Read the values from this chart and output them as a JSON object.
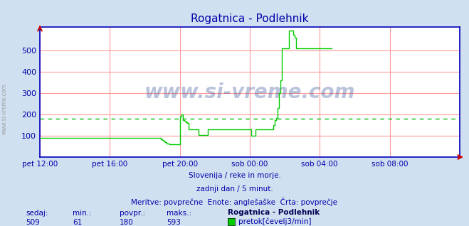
{
  "title": "Rogatnica - Podlehnik",
  "bg_color": "#d0e0f0",
  "plot_bg_color": "#ffffff",
  "line_color": "#00cc00",
  "avg_line_color": "#00bb00",
  "avg_value": 180,
  "grid_color": "#ff9999",
  "text_color": "#0000aa",
  "ylabel_ticks": [
    100,
    200,
    300,
    400,
    500
  ],
  "ylim": [
    0,
    610
  ],
  "subtitle1": "Slovenija / reke in morje.",
  "subtitle2": "zadnji dan / 5 minut.",
  "subtitle3": "Meritve: povprečne  Enote: anglešaške  Črta: povprečje",
  "bottom_labels": [
    "sedaj:",
    "min.:",
    "povpr.:",
    "maks.:"
  ],
  "bottom_values": [
    "509",
    "61",
    "180",
    "593"
  ],
  "station_name": "Rogatnica - Podlehnik",
  "legend_label": "pretok[čevelj3/min]",
  "xtick_labels": [
    "pet 12:00",
    "pet 16:00",
    "pet 20:00",
    "sob 00:00",
    "sob 04:00",
    "sob 08:00"
  ],
  "xtick_positions": [
    0,
    48,
    96,
    144,
    192,
    240
  ],
  "total_points": 288,
  "watermark": "www.si-vreme.com",
  "flow_data": [
    90,
    90,
    90,
    90,
    90,
    90,
    90,
    90,
    90,
    90,
    90,
    90,
    90,
    90,
    90,
    90,
    90,
    90,
    90,
    90,
    90,
    90,
    90,
    90,
    90,
    90,
    90,
    90,
    90,
    90,
    90,
    90,
    90,
    90,
    90,
    90,
    90,
    90,
    90,
    90,
    90,
    90,
    90,
    90,
    90,
    90,
    90,
    90,
    90,
    90,
    90,
    90,
    90,
    90,
    90,
    90,
    90,
    90,
    90,
    90,
    90,
    90,
    90,
    90,
    90,
    90,
    90,
    90,
    90,
    90,
    90,
    90,
    90,
    90,
    90,
    90,
    90,
    90,
    90,
    90,
    90,
    90,
    90,
    85,
    80,
    75,
    70,
    65,
    62,
    61,
    61,
    61,
    61,
    61,
    61,
    61,
    190,
    200,
    175,
    170,
    165,
    160,
    130,
    130,
    130,
    130,
    130,
    130,
    130,
    105,
    105,
    105,
    105,
    105,
    105,
    130,
    130,
    130,
    130,
    130,
    130,
    130,
    130,
    130,
    130,
    130,
    130,
    130,
    130,
    130,
    130,
    130,
    130,
    130,
    130,
    130,
    130,
    130,
    130,
    130,
    130,
    130,
    130,
    130,
    130,
    100,
    100,
    100,
    130,
    130,
    130,
    130,
    130,
    130,
    130,
    130,
    130,
    130,
    130,
    130,
    150,
    175,
    185,
    230,
    300,
    360,
    510,
    510,
    510,
    510,
    510,
    593,
    593,
    593,
    575,
    560,
    510,
    510,
    510,
    510,
    510,
    510,
    510,
    510,
    510,
    510,
    510,
    510,
    510,
    510,
    510,
    510,
    510,
    510,
    510,
    510,
    510,
    510,
    510,
    510,
    510
  ]
}
